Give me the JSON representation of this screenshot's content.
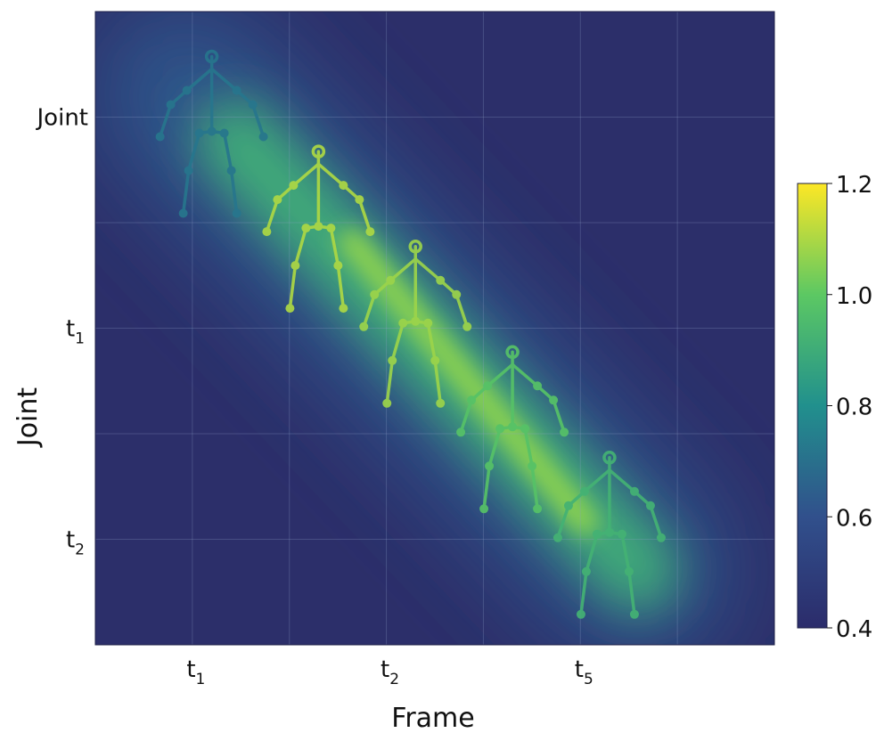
{
  "chart_data": {
    "type": "heatmap",
    "title": "",
    "xlabel": "Frame",
    "ylabel": "Joint",
    "x_ticks": [
      {
        "base": "t",
        "sub": "1",
        "x": 1
      },
      {
        "base": "t",
        "sub": "2",
        "x": 3
      },
      {
        "base": "t",
        "sub": "5",
        "x": 5
      }
    ],
    "y_ticks": [
      {
        "base": "Joint",
        "sub": "",
        "y": 1
      },
      {
        "base": "t",
        "sub": "1",
        "y": 3
      },
      {
        "base": "t",
        "sub": "2",
        "y": 5
      }
    ],
    "xlim": [
      0,
      7
    ],
    "ylim": [
      0,
      6
    ],
    "grid": true,
    "colormap": "viridis",
    "colorbar": {
      "range": [
        0.4,
        1.2
      ],
      "ticks": [
        "1.2",
        "1.0",
        "0.8",
        "0.6",
        "0.4"
      ]
    },
    "heat_band": {
      "start": [
        0.9,
        0.75
      ],
      "end": [
        5.6,
        5.3
      ],
      "peak_value": 1.18,
      "background_value": 0.42
    },
    "skeleton_frames": [
      {
        "x": 1.2,
        "y": 1.0,
        "value": 0.72
      },
      {
        "x": 2.3,
        "y": 1.9,
        "value": 1.1
      },
      {
        "x": 3.3,
        "y": 2.8,
        "value": 1.08
      },
      {
        "x": 4.3,
        "y": 3.8,
        "value": 0.98
      },
      {
        "x": 5.3,
        "y": 4.8,
        "value": 0.92
      }
    ]
  }
}
